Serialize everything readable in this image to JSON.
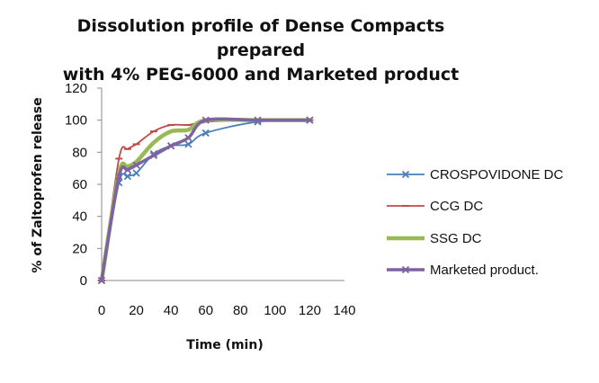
{
  "chart_data": {
    "type": "line",
    "title_lines": [
      "Dissolution profile of Dense Compacts prepared",
      "with 4% PEG-6000 and Marketed product"
    ],
    "xlabel": "Time (min)",
    "ylabel": "% of Zaltoprofen release",
    "xlim": [
      0,
      140
    ],
    "ylim": [
      0,
      120
    ],
    "xticks": [
      0,
      20,
      40,
      60,
      80,
      100,
      120,
      140
    ],
    "yticks": [
      0,
      20,
      40,
      60,
      80,
      100,
      120
    ],
    "grid": false,
    "legend_position": "right",
    "series": [
      {
        "name": "CROSPOVIDONE DC",
        "color": "#4a7ebb",
        "width": 1.8,
        "marker": "x",
        "x": [
          0,
          10,
          15,
          20,
          30,
          40,
          50,
          60,
          90,
          120
        ],
        "y": [
          0,
          61,
          65,
          67,
          79,
          84,
          85,
          92,
          99,
          100
        ]
      },
      {
        "name": "CCG DC",
        "color": "#be4b48",
        "width": 1.8,
        "marker": "dash",
        "x": [
          0,
          10,
          15,
          20,
          30,
          40,
          50,
          60,
          90,
          120
        ],
        "y": [
          0,
          76,
          82,
          85,
          93,
          97,
          97,
          99,
          100,
          100
        ]
      },
      {
        "name": "SSG DC",
        "color": "#98b954",
        "width": 4.5,
        "marker": "none",
        "x": [
          0,
          10,
          15,
          20,
          30,
          40,
          50,
          60,
          90,
          120
        ],
        "y": [
          0,
          67,
          71,
          74,
          86,
          93,
          94,
          100,
          100,
          100
        ]
      },
      {
        "name": "Marketed product.",
        "color": "#7e62a1",
        "width": 3.5,
        "marker": "x",
        "x": [
          0,
          10,
          15,
          20,
          30,
          40,
          50,
          60,
          90,
          120
        ],
        "y": [
          0,
          65,
          69,
          72,
          78,
          84,
          89,
          100,
          100,
          100
        ]
      }
    ]
  }
}
